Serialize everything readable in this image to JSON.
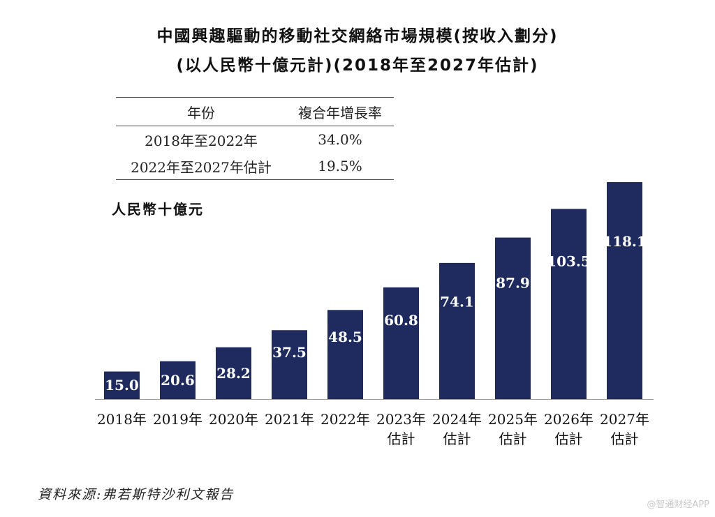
{
  "title_line1": "中國興趣驅動的移動社交網絡市場規模(按收入劃分)",
  "title_line2": "(以人民幣十億元計)(2018年至2027年估計)",
  "cagr_table": {
    "headers": [
      "年份",
      "複合年增長率"
    ],
    "rows": [
      [
        "2018年至2022年",
        "34.0%"
      ],
      [
        "2022年至2027年估計",
        "19.5%"
      ]
    ]
  },
  "unit_label": "人民幣十億元",
  "source": "資料來源:弗若斯特沙利文報告",
  "watermark": "@智通财经APP",
  "colors": {
    "bar": "#1f2a5e",
    "bar_label": "#ffffff"
  },
  "chart_data": {
    "type": "bar",
    "categories": [
      "2018年",
      "2019年",
      "2020年",
      "2021年",
      "2022年",
      "2023年 估計",
      "2024年 估計",
      "2025年 估計",
      "2026年 估計",
      "2027年 估計"
    ],
    "category_lines": [
      [
        "2018年"
      ],
      [
        "2019年"
      ],
      [
        "2020年"
      ],
      [
        "2021年"
      ],
      [
        "2022年"
      ],
      [
        "2023年",
        "估計"
      ],
      [
        "2024年",
        "估計"
      ],
      [
        "2025年",
        "估計"
      ],
      [
        "2026年",
        "估計"
      ],
      [
        "2027年",
        "估計"
      ]
    ],
    "values": [
      15.0,
      20.6,
      28.2,
      37.5,
      48.5,
      60.8,
      74.1,
      87.9,
      103.5,
      118.1
    ],
    "value_labels": [
      "15.0",
      "20.6",
      "28.2",
      "37.5",
      "48.5",
      "60.8",
      "74.1",
      "87.9",
      "103.5",
      "118.1"
    ],
    "title": "中國興趣驅動的移動社交網絡市場規模(按收入劃分)",
    "ylabel": "人民幣十億元",
    "ylim": [
      0,
      118.1
    ],
    "grid": false,
    "legend": "none"
  }
}
